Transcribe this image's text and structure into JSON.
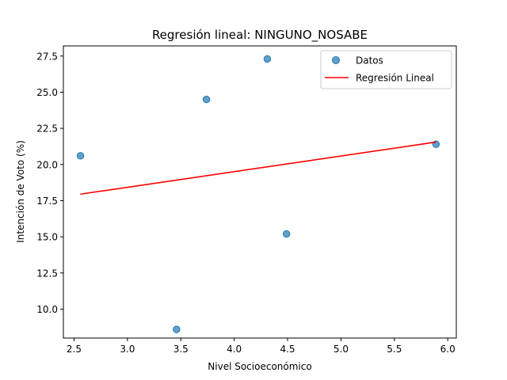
{
  "chart_data": {
    "type": "scatter",
    "title": "Regresión lineal: NINGUNO_NOSABE",
    "xlabel": "Nivel Socioeconómico",
    "ylabel": "Intención de Voto (%)",
    "xlim": [
      2.4,
      6.08
    ],
    "ylim": [
      8.0,
      28.2
    ],
    "x_ticks": [
      2.5,
      3.0,
      3.5,
      4.0,
      4.5,
      5.0,
      5.5,
      6.0
    ],
    "x_tick_labels": [
      "2.5",
      "3.0",
      "3.5",
      "4.0",
      "4.5",
      "5.0",
      "5.5",
      "6.0"
    ],
    "y_ticks": [
      10.0,
      12.5,
      15.0,
      17.5,
      20.0,
      22.5,
      25.0,
      27.5
    ],
    "y_tick_labels": [
      "10.0",
      "12.5",
      "15.0",
      "17.5",
      "20.0",
      "22.5",
      "25.0",
      "27.5"
    ],
    "grid": false,
    "legend_position": "top-right",
    "series": [
      {
        "name": "Datos",
        "kind": "scatter",
        "color": "#1f77b4",
        "points": [
          {
            "x": 2.56,
            "y": 20.6
          },
          {
            "x": 3.46,
            "y": 8.6
          },
          {
            "x": 3.74,
            "y": 24.5
          },
          {
            "x": 4.31,
            "y": 27.3
          },
          {
            "x": 4.49,
            "y": 15.2
          },
          {
            "x": 5.89,
            "y": 21.4
          }
        ]
      },
      {
        "name": "Regresión Lineal",
        "kind": "line",
        "color": "#ff0000",
        "points": [
          {
            "x": 2.56,
            "y": 17.95
          },
          {
            "x": 5.89,
            "y": 21.55
          }
        ]
      }
    ]
  }
}
